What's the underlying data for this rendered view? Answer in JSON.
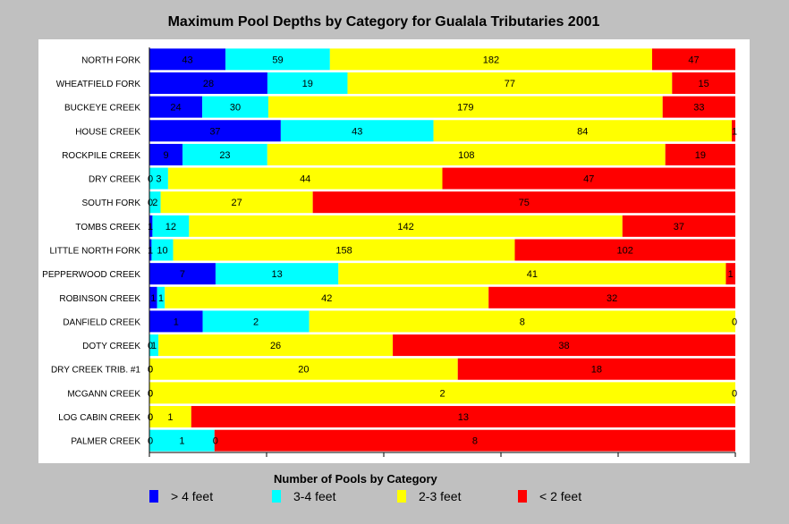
{
  "chart_data": {
    "type": "bar",
    "orientation": "horizontal",
    "stacking": "percent",
    "title": "Maximum Pool Depths by Category for Gualala Tributaries 2001",
    "categories": [
      "NORTH FORK",
      "WHEATFIELD FORK",
      "BUCKEYE CREEK",
      "HOUSE CREEK",
      "ROCKPILE CREEK",
      "DRY CREEK",
      "SOUTH FORK",
      "TOMBS CREEK",
      "LITTLE NORTH FORK",
      "PEPPERWOOD CREEK",
      "ROBINSON CREEK",
      "DANFIELD CREEK",
      "DOTY CREEK",
      "DRY CREEK TRIB. #1",
      "MCGANN CREEK",
      "LOG CABIN CREEK",
      "PALMER CREEK"
    ],
    "series": [
      {
        "name": "> 4 feet",
        "color": "#0000ff",
        "values": [
          43,
          28,
          24,
          37,
          9,
          0,
          0,
          1,
          1,
          7,
          1,
          1,
          0,
          0,
          0,
          0,
          0
        ]
      },
      {
        "name": "3-4 feet",
        "color": "#00ffff",
        "values": [
          59,
          19,
          30,
          43,
          23,
          3,
          2,
          12,
          10,
          13,
          1,
          2,
          1,
          0,
          0,
          0,
          1
        ]
      },
      {
        "name": "2-3 feet",
        "color": "#ffff00",
        "values": [
          182,
          77,
          179,
          84,
          108,
          44,
          27,
          142,
          158,
          41,
          42,
          8,
          26,
          20,
          2,
          1,
          0
        ]
      },
      {
        "name": "< 2 feet",
        "color": "#ff0000",
        "values": [
          47,
          15,
          33,
          1,
          19,
          47,
          75,
          37,
          102,
          1,
          32,
          0,
          38,
          18,
          0,
          13,
          8
        ]
      }
    ],
    "legend_title": "Number of Pools by Category",
    "legend_position": "bottom",
    "grid": false,
    "xlim": [
      0,
      100
    ]
  }
}
